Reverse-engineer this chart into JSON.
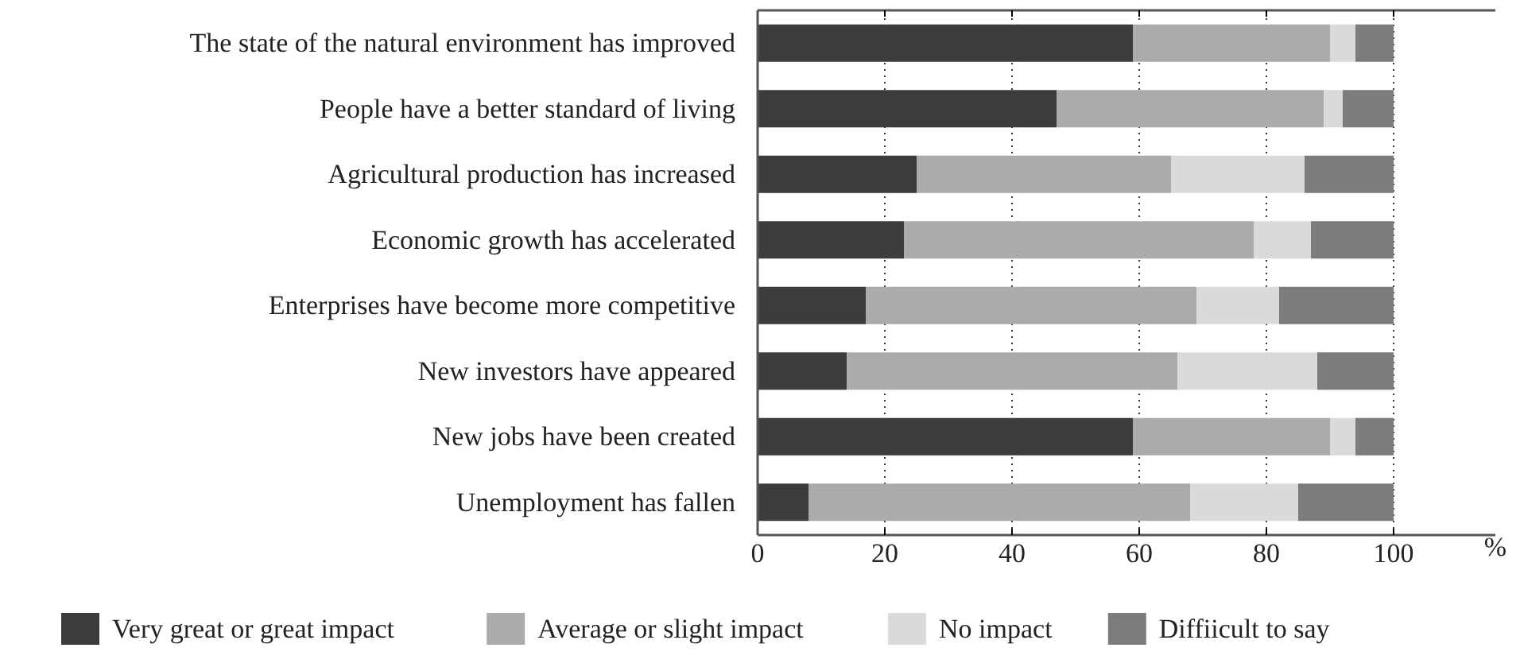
{
  "chart_data": {
    "type": "bar",
    "orientation": "horizontal",
    "stacked": true,
    "xlabel": "%",
    "categories": [
      "The state of the natural environment has improved",
      "People have a better standard of living",
      "Agricultural production has increased",
      "Economic growth has accelerated",
      "Enterprises have become more competitive",
      "New investors have appeared",
      "New jobs have been created",
      "Unemployment has fallen"
    ],
    "series": [
      {
        "name": "Very great or great impact",
        "color": "#3c3c3c",
        "values": [
          59,
          47,
          25,
          23,
          17,
          14,
          59,
          8
        ]
      },
      {
        "name": "Average or slight impact",
        "color": "#ababab",
        "values": [
          31,
          42,
          40,
          55,
          52,
          52,
          31,
          60
        ]
      },
      {
        "name": "No impact",
        "color": "#dadada",
        "values": [
          4,
          3,
          21,
          9,
          13,
          22,
          4,
          17
        ]
      },
      {
        "name": "Diffiicult to say",
        "color": "#7c7c7c",
        "values": [
          6,
          8,
          14,
          13,
          18,
          12,
          6,
          15
        ]
      }
    ],
    "xlim": [
      0,
      116
    ],
    "xticks": [
      0,
      20,
      40,
      60,
      80,
      100
    ],
    "grid": "x",
    "legend": "bottom"
  }
}
